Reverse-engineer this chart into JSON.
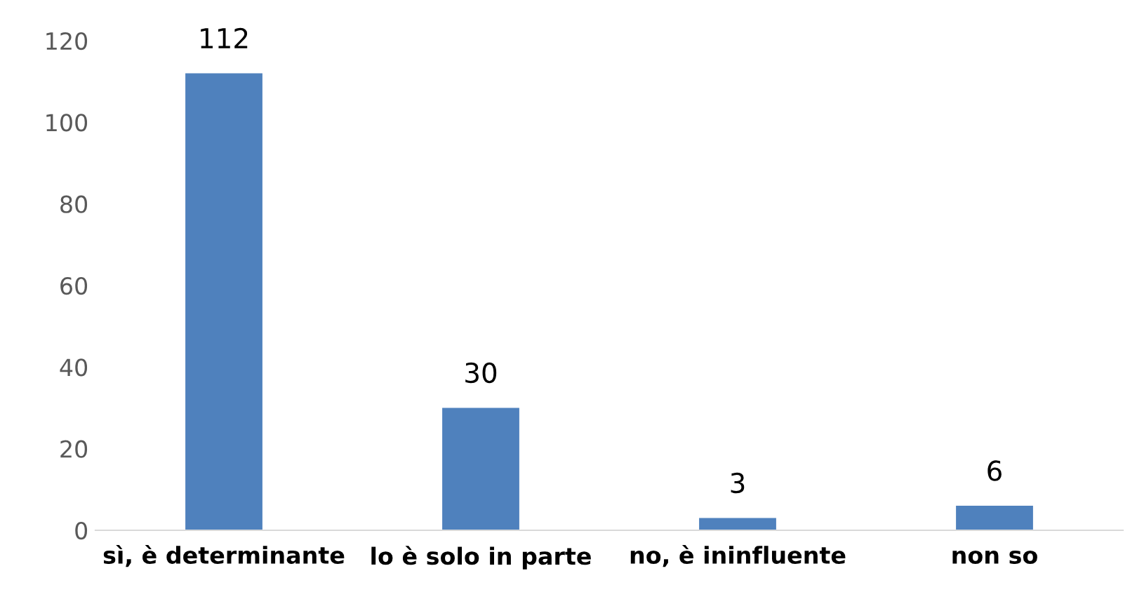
{
  "chart_data": {
    "type": "bar",
    "categories": [
      "sì, è determinante",
      "lo è solo in parte",
      "no, è ininfluente",
      "non so"
    ],
    "values": [
      112,
      30,
      3,
      6
    ],
    "color": "#4f81bd",
    "ylim": [
      0,
      120
    ],
    "yticks": [
      0,
      20,
      40,
      60,
      80,
      100,
      120
    ],
    "grid": false,
    "data_labels": true
  }
}
